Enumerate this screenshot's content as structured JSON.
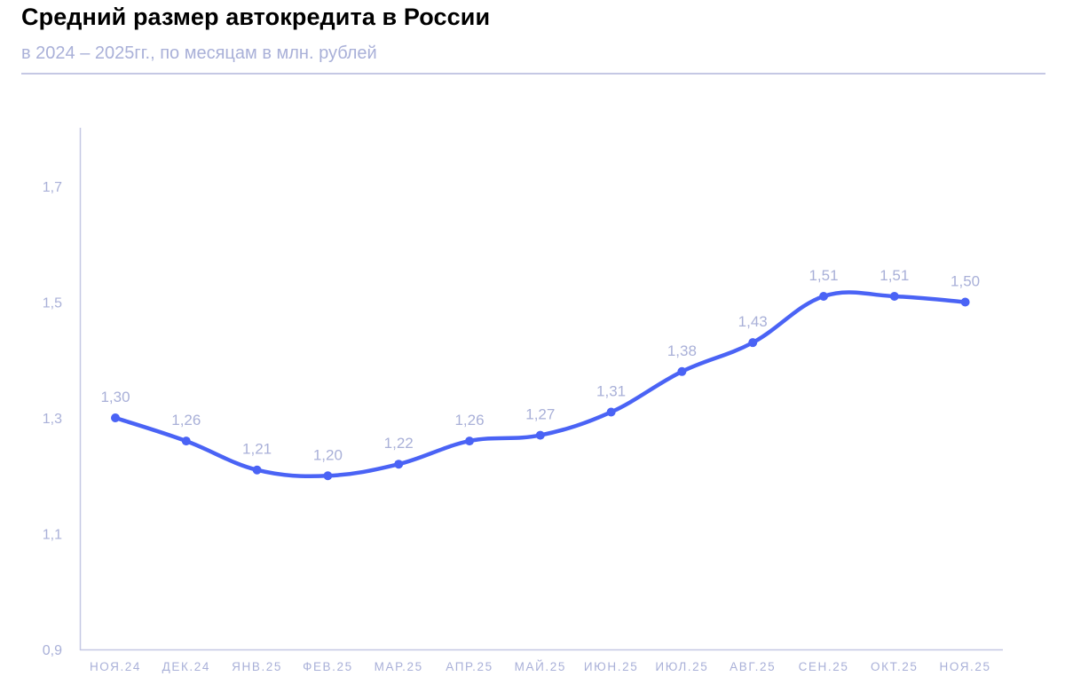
{
  "header": {
    "title": "Средний размер автокредита в России",
    "subtitle": "в 2024 – 2025гг., по месяцам в млн. рублей"
  },
  "colors": {
    "line": "#4a63f5",
    "axis": "#c5c8e4",
    "label": "#a9b0d8",
    "title": "#000000"
  },
  "chart_data": {
    "type": "line",
    "title": "Средний размер автокредита в России",
    "subtitle": "в 2024 – 2025гг., по месяцам в млн. рублей",
    "xlabel": "",
    "ylabel": "",
    "categories": [
      "НОЯ.24",
      "ДЕК.24",
      "ЯНВ.25",
      "ФЕВ.25",
      "МАР.25",
      "АПР.25",
      "МАЙ.25",
      "ИЮН.25",
      "ИЮЛ.25",
      "АВГ.25",
      "СЕН.25",
      "ОКТ.25",
      "НОЯ.25"
    ],
    "series": [
      {
        "name": "Средний размер автокредита, млн. руб.",
        "values": [
          1.3,
          1.26,
          1.21,
          1.2,
          1.22,
          1.26,
          1.27,
          1.31,
          1.38,
          1.43,
          1.51,
          1.51,
          1.5
        ],
        "labels": [
          "1,30",
          "1,26",
          "1,21",
          "1,20",
          "1,22",
          "1,26",
          "1,27",
          "1,31",
          "1,38",
          "1,43",
          "1,51",
          "1,51",
          "1,50"
        ]
      }
    ],
    "yticks": [
      0.9,
      1.1,
      1.3,
      1.5,
      1.7
    ],
    "ytick_labels": [
      "0,9",
      "1,1",
      "1,3",
      "1,5",
      "1,7"
    ],
    "ylim": [
      0.9,
      1.8
    ],
    "grid": false,
    "legend": "none"
  }
}
